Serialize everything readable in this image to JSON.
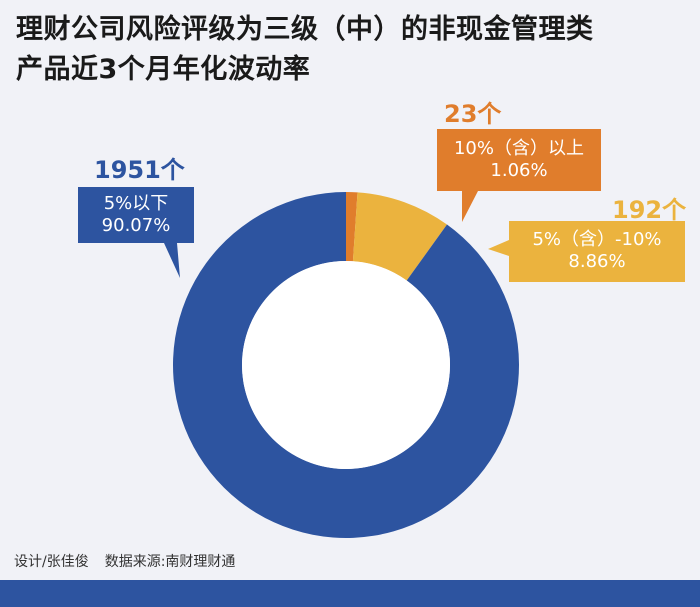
{
  "title_line1": "理财公司风险评级为三级（中）的非现金管理类",
  "title_line2": "产品近3个月年化波动率",
  "credit_design": "设计/张佳俊",
  "credit_source": "数据来源:南财理财通",
  "colors": {
    "blue": "#2d54a0",
    "orange": "#e07d2c",
    "yellow": "#ebb33e",
    "background": "#f1f2f7"
  },
  "chart_data": {
    "type": "pie",
    "donut": true,
    "title": "理财公司风险评级为三级（中）的非现金管理类产品近3个月年化波动率",
    "categories": [
      "5%以下",
      "10%（含）以上",
      "5%（含）-10%"
    ],
    "values": [
      90.07,
      1.06,
      8.86
    ],
    "value_labels": [
      "90.07%",
      "1.06%",
      "8.86%"
    ],
    "counts": [
      "1951个",
      "23个",
      "192个"
    ],
    "colors": [
      "#2d54a0",
      "#e07d2c",
      "#ebb33e"
    ]
  }
}
